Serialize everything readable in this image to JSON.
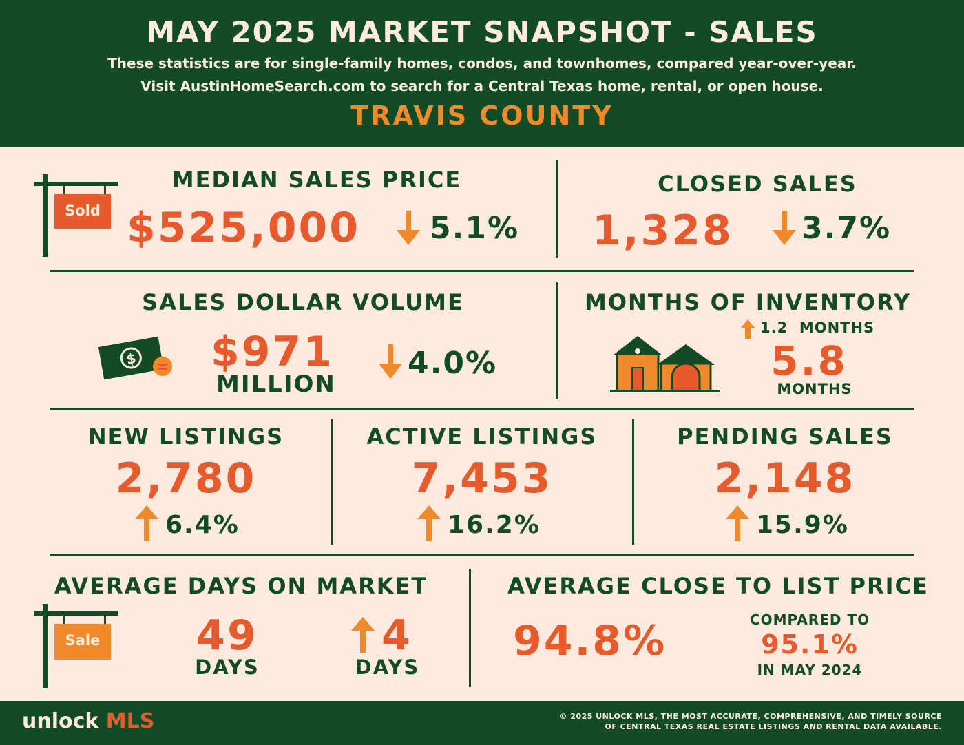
{
  "header": {
    "title": "MAY 2025 MARKET SNAPSHOT - SALES",
    "subtitle_1": "These statistics are for single-family homes, condos, and townhomes, compared year-over-year.",
    "subtitle_2": "Visit AustinHomeSearch.com to search for a Central Texas home, rental, or open house.",
    "county": "TRAVIS COUNTY"
  },
  "median_sales_price": {
    "label": "MEDIAN SALES PRICE",
    "value": "$525,000",
    "change": "5.1%",
    "direction": "down",
    "sign_text": "Sold"
  },
  "closed_sales": {
    "label": "CLOSED SALES",
    "value": "1,328",
    "change": "3.7%",
    "direction": "down"
  },
  "sales_dollar_volume": {
    "label": "SALES DOLLAR VOLUME",
    "value": "$971",
    "unit": "MILLION",
    "change": "4.0%",
    "direction": "down"
  },
  "months_of_inventory": {
    "label": "MONTHS OF INVENTORY",
    "change": "1.2  MONTHS",
    "direction": "up",
    "value": "5.8",
    "unit": "MONTHS"
  },
  "new_listings": {
    "label": "NEW LISTINGS",
    "value": "2,780",
    "change": "6.4%",
    "direction": "up"
  },
  "active_listings": {
    "label": "ACTIVE LISTINGS",
    "value": "7,453",
    "change": "16.2%",
    "direction": "up"
  },
  "pending_sales": {
    "label": "PENDING SALES",
    "value": "2,148",
    "change": "15.9%",
    "direction": "up"
  },
  "average_days_on_market": {
    "label": "AVERAGE DAYS ON MARKET",
    "value": "49",
    "unit": "DAYS",
    "change": "4",
    "change_unit": "DAYS",
    "direction": "up",
    "sign_text": "Sale"
  },
  "average_close_to_list": {
    "label": "AVERAGE CLOSE TO LIST PRICE",
    "value": "94.8%",
    "compared_label": "COMPARED TO",
    "compared_value": "95.1%",
    "compared_period": "IN MAY 2024"
  },
  "footer": {
    "logo_word": "unlock",
    "logo_mls": "MLS",
    "copyright_1": "© 2025 UNLOCK MLS, THE MOST ACCURATE, COMPREHENSIVE, AND TIMELY SOURCE",
    "copyright_2": "OF CENTRAL TEXAS REAL ESTATE LISTINGS AND RENTAL DATA AVAILABLE."
  },
  "colors": {
    "green": "#124b25",
    "orange": "#e85a2b",
    "amber": "#f0892a",
    "cream": "#fbeadd"
  }
}
